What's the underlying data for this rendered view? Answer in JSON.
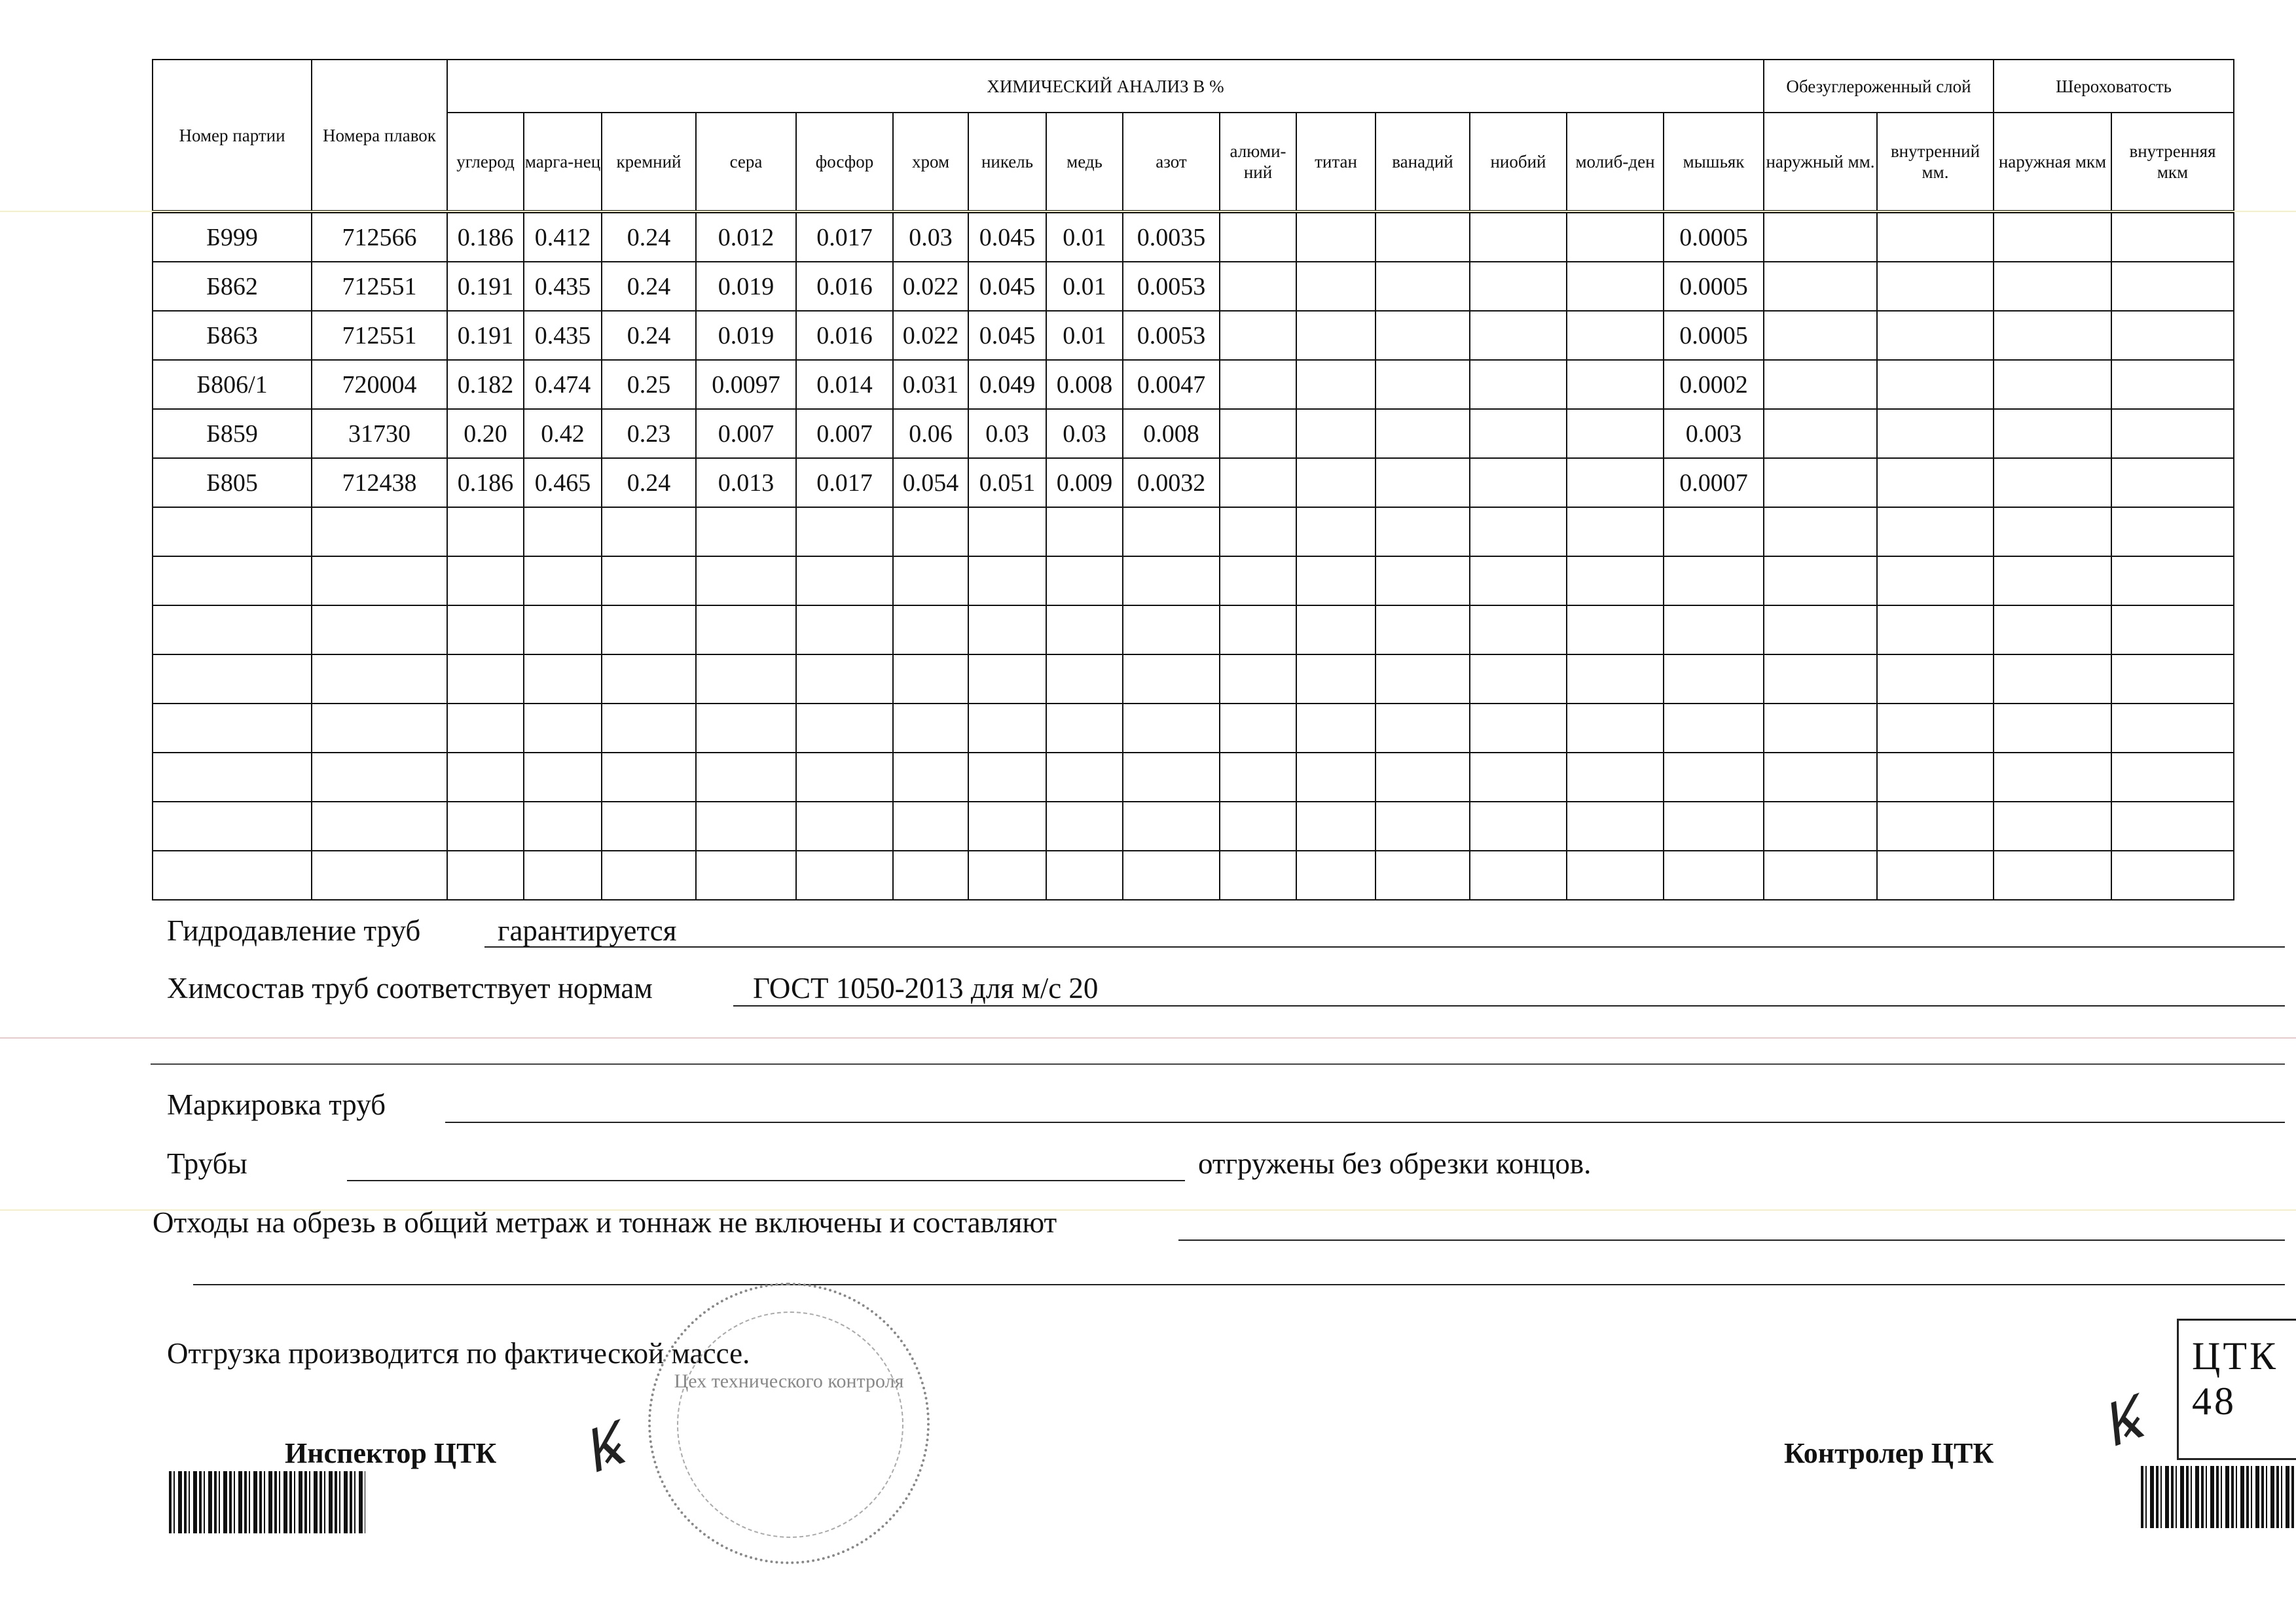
{
  "table": {
    "col_batch": "Номер партии",
    "col_heats": "Номера плавок",
    "chem_title": "ХИМИЧЕСКИЙ АНАЛИЗ В %",
    "decarb_title": "Обезуглероженный слой",
    "rough_title": "Шероховатость",
    "chem_cols": [
      "углерод",
      "марга-нец",
      "кремний",
      "сера",
      "фосфор",
      "хром",
      "никель",
      "медь",
      "азот",
      "алюми-ний",
      "титан",
      "ванадий",
      "ниобий",
      "молиб-ден",
      "мышьяк"
    ],
    "decarb_cols": [
      "наружный мм.",
      "внутренний мм."
    ],
    "rough_cols": [
      "наружная мкм",
      "внутренняя мкм"
    ],
    "rows": [
      [
        "Б999",
        "712566",
        "0.186",
        "0.412",
        "0.24",
        "0.012",
        "0.017",
        "0.03",
        "0.045",
        "0.01",
        "0.0035",
        "",
        "",
        "",
        "",
        "",
        "0.0005",
        "",
        "",
        "",
        ""
      ],
      [
        "Б862",
        "712551",
        "0.191",
        "0.435",
        "0.24",
        "0.019",
        "0.016",
        "0.022",
        "0.045",
        "0.01",
        "0.0053",
        "",
        "",
        "",
        "",
        "",
        "0.0005",
        "",
        "",
        "",
        ""
      ],
      [
        "Б863",
        "712551",
        "0.191",
        "0.435",
        "0.24",
        "0.019",
        "0.016",
        "0.022",
        "0.045",
        "0.01",
        "0.0053",
        "",
        "",
        "",
        "",
        "",
        "0.0005",
        "",
        "",
        "",
        ""
      ],
      [
        "Б806/1",
        "720004",
        "0.182",
        "0.474",
        "0.25",
        "0.0097",
        "0.014",
        "0.031",
        "0.049",
        "0.008",
        "0.0047",
        "",
        "",
        "",
        "",
        "",
        "0.0002",
        "",
        "",
        "",
        ""
      ],
      [
        "Б859",
        "31730",
        "0.20",
        "0.42",
        "0.23",
        "0.007",
        "0.007",
        "0.06",
        "0.03",
        "0.03",
        "0.008",
        "",
        "",
        "",
        "",
        "",
        "0.003",
        "",
        "",
        "",
        ""
      ],
      [
        "Б805",
        "712438",
        "0.186",
        "0.465",
        "0.24",
        "0.013",
        "0.017",
        "0.054",
        "0.051",
        "0.009",
        "0.0032",
        "",
        "",
        "",
        "",
        "",
        "0.0007",
        "",
        "",
        "",
        ""
      ]
    ]
  },
  "notes": {
    "hydro_label": "Гидродавление труб",
    "hydro_value": "гарантируется",
    "chem_label": "Химсостав труб соответствует нормам",
    "chem_value": "ГОСТ 1050-2013 для м/с 20",
    "marking_label": "Маркировка труб",
    "pipes_label": "Трубы",
    "pipes_suffix": "отгружены без обрезки концов.",
    "waste_label": "Отходы на обрезь в общий метраж и тоннаж не включены и составляют",
    "shipping": "Отгрузка производится по фактической массе."
  },
  "signatures": {
    "inspector": "Инспектор ЦТК",
    "controller": "Контролер ЦТК"
  },
  "stamps": {
    "round_stamp": "Цех технического контроля",
    "box_stamp": "ЦТК 48"
  }
}
